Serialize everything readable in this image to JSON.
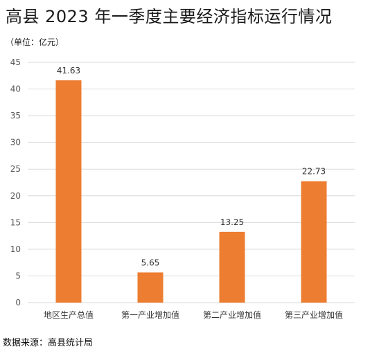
{
  "header": {
    "title": "高县 2023 年一季度主要经济指标运行情况",
    "unit_note": "（单位：亿元）"
  },
  "footer": {
    "source": "数据来源：高县统计局"
  },
  "colors": {
    "bar": "#ED7D31",
    "grid": "#d9d9d9",
    "axis_text": "#555555"
  },
  "chart_data": {
    "type": "bar",
    "title": "高县 2023 年一季度主要经济指标运行情况",
    "ylabel": "",
    "xlabel": "",
    "categories": [
      "地区生产总值",
      "第一产业增加值",
      "第二产业增加值",
      "第三产业增加值"
    ],
    "values": [
      41.63,
      5.65,
      13.25,
      22.73
    ],
    "value_labels": [
      "41.63",
      "5.65",
      "13.25",
      "22.73"
    ],
    "ylim": [
      0,
      45
    ],
    "yticks": [
      0,
      5,
      10,
      15,
      20,
      25,
      30,
      35,
      40,
      45
    ],
    "grid": true,
    "legend": "none"
  }
}
